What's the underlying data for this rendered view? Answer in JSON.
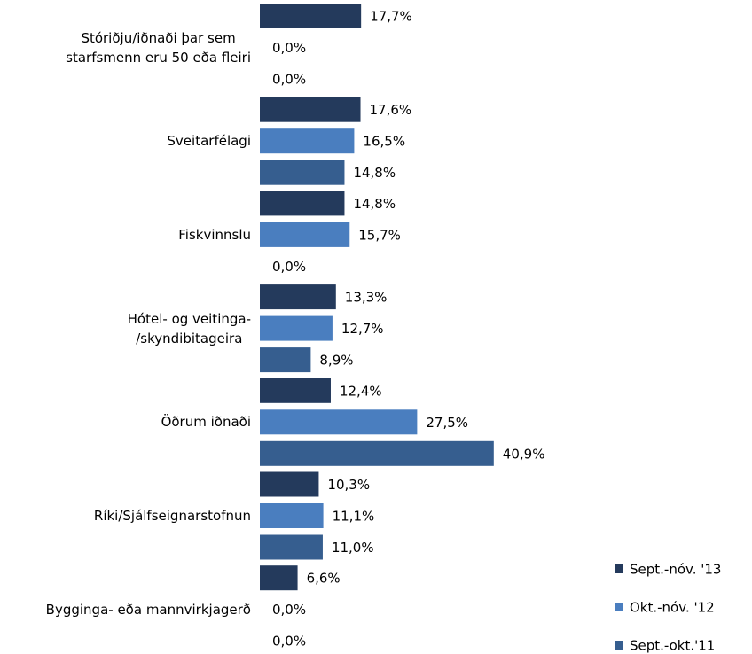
{
  "chart_data": {
    "type": "bar",
    "orientation": "horizontal",
    "categories": [
      "Stóriðju/iðnaði þar sem\nstarfsmenn eru 50 eða fleiri",
      "Sveitarfélagi",
      "Fiskvinnslu",
      "Hótel- og veitinga-\n/skyndibitageira",
      "Öðrum iðnaði",
      "Ríki/Sjálfseignarstofnun",
      "Bygginga- eða mannvirkjagerð"
    ],
    "series": [
      {
        "name": "Sept.-nóv. '13",
        "color": "#243a5c",
        "values": [
          17.7,
          17.6,
          14.8,
          13.3,
          12.4,
          10.3,
          6.6
        ],
        "value_labels": [
          "17,7%",
          "17,6%",
          "14,8%",
          "13,3%",
          "12,4%",
          "10,3%",
          "6,6%"
        ]
      },
      {
        "name": "Okt.-nóv. '12",
        "color": "#4a7ebf",
        "values": [
          0.0,
          16.5,
          15.7,
          12.7,
          27.5,
          11.1,
          0.0
        ],
        "value_labels": [
          "0,0%",
          "16,5%",
          "15,7%",
          "12,7%",
          "27,5%",
          "11,1%",
          "0,0%"
        ]
      },
      {
        "name": "Sept.-okt.'11",
        "color": "#365e8f",
        "values": [
          0.0,
          14.8,
          0.0,
          8.9,
          40.9,
          11.0,
          0.0
        ],
        "value_labels": [
          "0,0%",
          "14,8%",
          "0,0%",
          "8,9%",
          "40,9%",
          "11,0%",
          "0,0%"
        ]
      }
    ],
    "legend": "bottom-right"
  }
}
